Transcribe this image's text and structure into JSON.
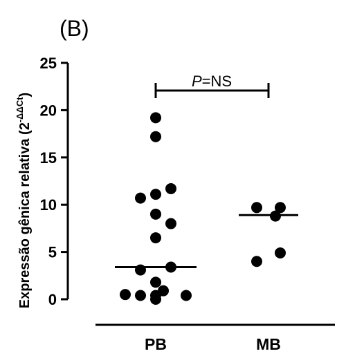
{
  "chart_data": {
    "type": "scatter",
    "panel_label": "(B)",
    "ylabel": "Expressão gênica relativa (2",
    "ylabel_superscript": "-ΔΔCt",
    "ylabel_suffix": ")",
    "ylim": [
      0,
      25
    ],
    "yticks": [
      "0",
      "5",
      "10",
      "15",
      "20",
      "25"
    ],
    "categories": [
      "PB",
      "MB"
    ],
    "series": [
      {
        "category": "PB",
        "values": [
          19.2,
          17.2,
          11.7,
          11.1,
          10.7,
          9.0,
          8.0,
          6.5,
          3.4,
          3.1,
          1.8,
          0.9,
          0.5,
          0.4,
          0.4,
          0.4,
          0.0
        ],
        "median": 3.4
      },
      {
        "category": "MB",
        "values": [
          9.7,
          9.7,
          8.8,
          4.9,
          4.0
        ],
        "median": 8.9
      }
    ],
    "annotation": {
      "italic_part": "P",
      "text": "=NS"
    },
    "grid": false
  }
}
